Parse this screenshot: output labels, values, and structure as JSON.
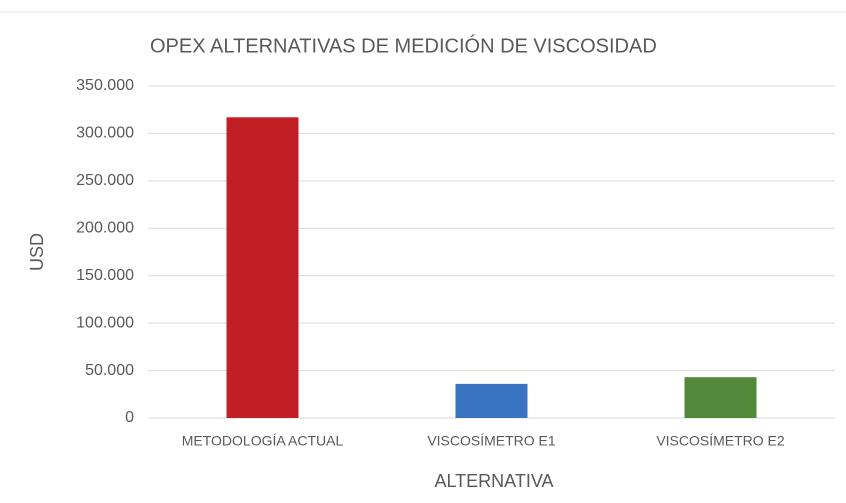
{
  "chart_data": {
    "type": "bar",
    "title": "OPEX ALTERNATIVAS DE MEDICIÓN DE VISCOSIDAD",
    "xlabel": "ALTERNATIVA",
    "ylabel": "USD",
    "categories": [
      "METODOLOGÍA ACTUAL",
      "VISCOSÍMETRO E1",
      "VISCOSÍMETRO E2"
    ],
    "values": [
      317000,
      36000,
      43000
    ],
    "colors": [
      "#c21f25",
      "#3a73c0",
      "#51883a"
    ],
    "ylim": [
      0,
      350000
    ],
    "yticks": [
      0,
      {
        "value": 50000,
        "label": "50.000"
      },
      {
        "value": 100000,
        "label": "100.000"
      },
      {
        "value": 150000,
        "label": "150.000"
      },
      {
        "value": 200000,
        "label": "200.000"
      },
      {
        "value": 250000,
        "label": "250.000"
      },
      {
        "value": 300000,
        "label": "300.000"
      },
      {
        "value": 350000,
        "label": "350.000"
      }
    ],
    "grid": true
  }
}
